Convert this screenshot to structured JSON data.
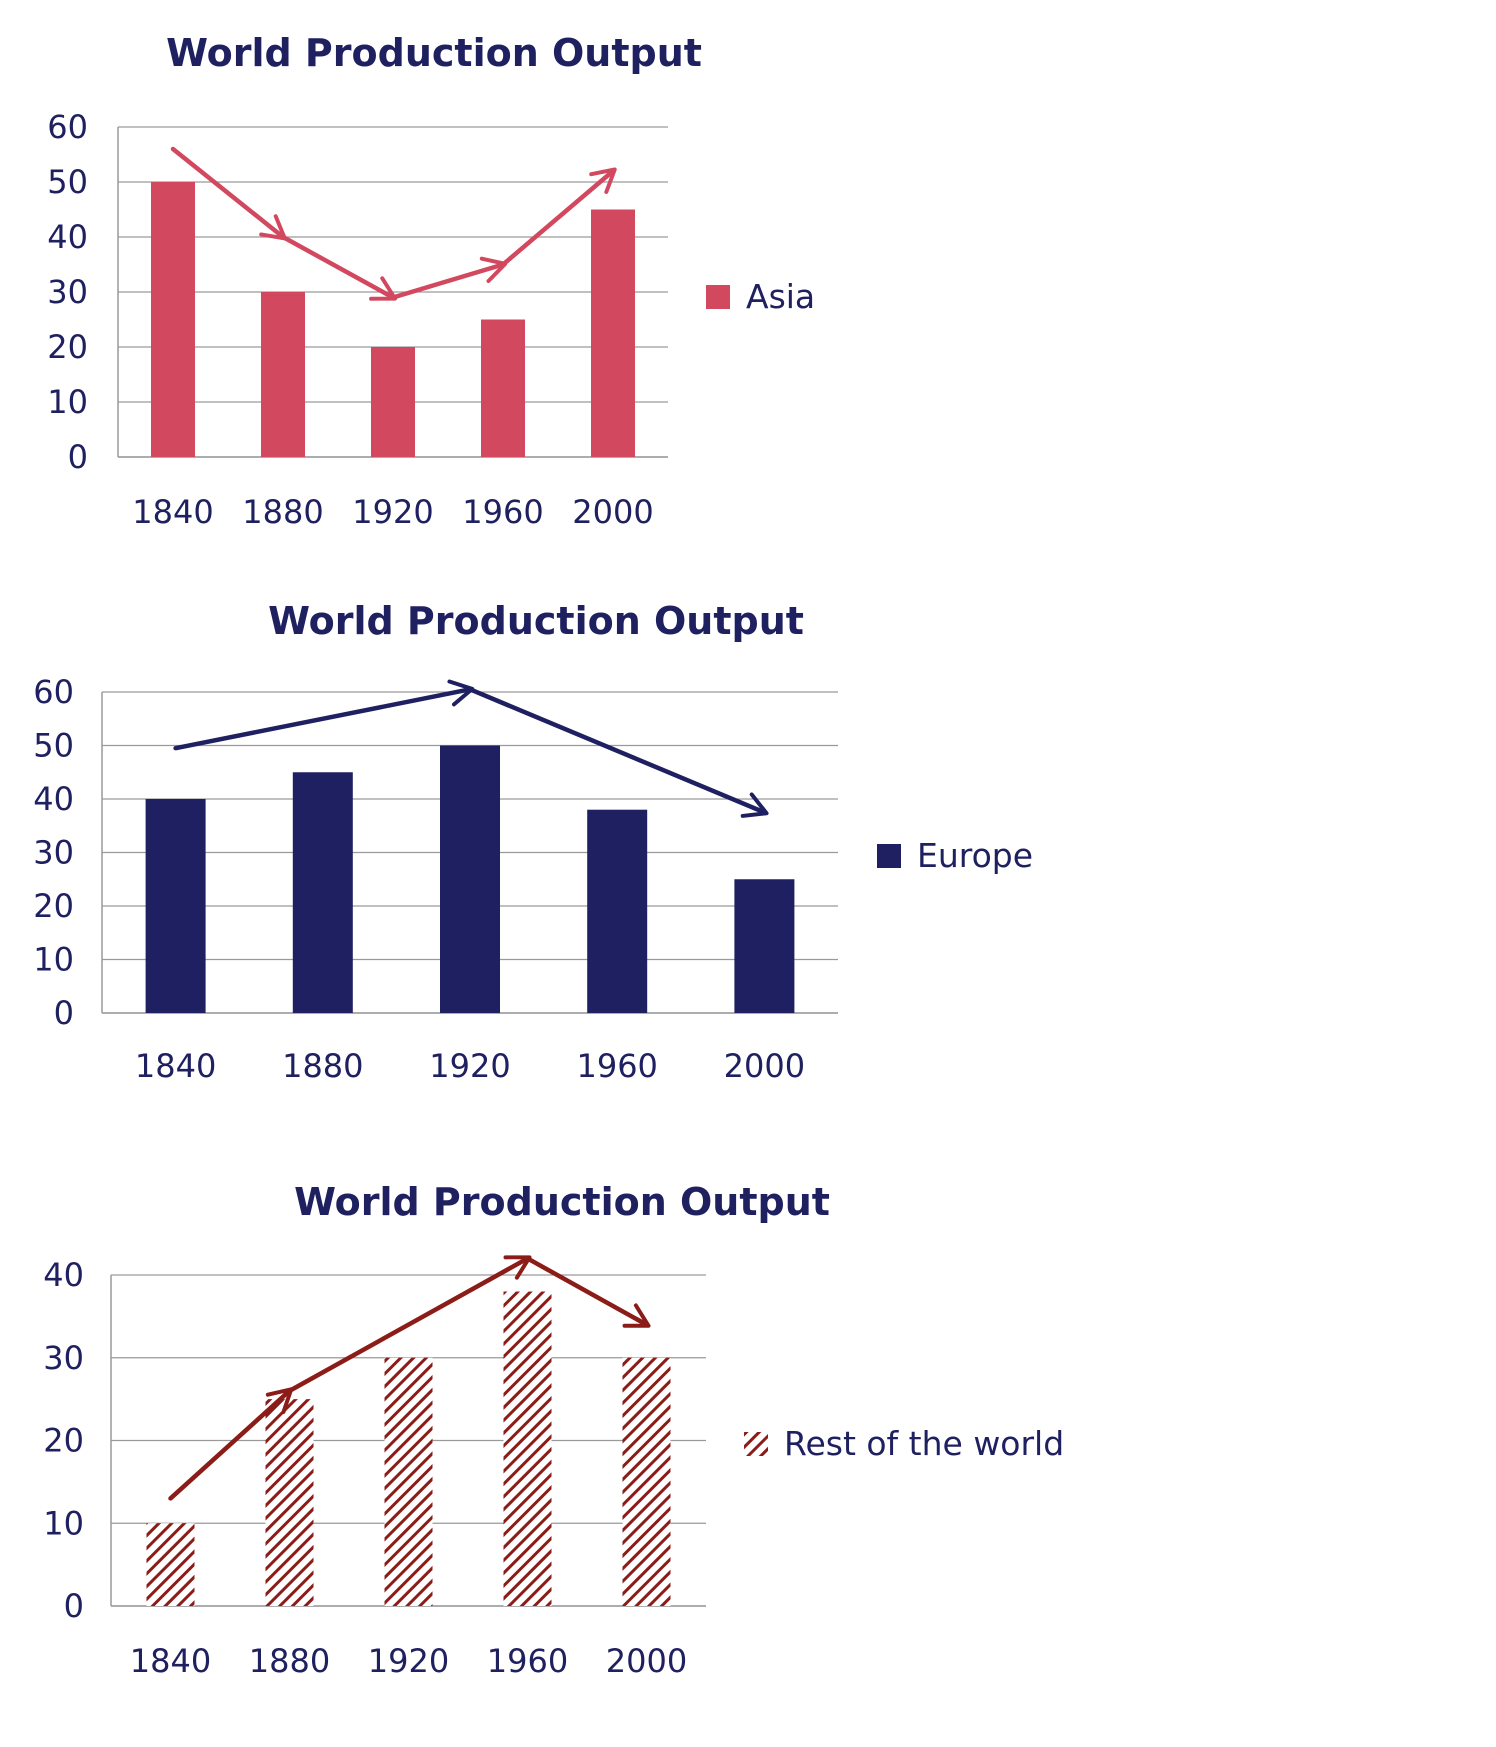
{
  "colors": {
    "title": "#1f2060",
    "axis_text": "#1f2060",
    "grid": "#9a9a9a",
    "asia": "#d2485f",
    "europe": "#1f2062",
    "rest": "#8b1c18"
  },
  "chart_data": [
    {
      "type": "bar",
      "title": "World Production Output",
      "categories": [
        "1840",
        "1880",
        "1920",
        "1960",
        "2000"
      ],
      "series": [
        {
          "name": "Asia",
          "values": [
            50,
            30,
            20,
            25,
            45
          ],
          "color": "#d2485f",
          "pattern": "solid"
        }
      ],
      "ylim": [
        0,
        60
      ],
      "yticks": [
        0,
        10,
        20,
        30,
        40,
        50,
        60
      ],
      "xlabel": "",
      "ylabel": "",
      "grid": true,
      "legend": "right",
      "trend_arrow": {
        "color": "#d2485f",
        "points": [
          [
            1840,
            56
          ],
          [
            1880,
            40
          ],
          [
            1920,
            29
          ],
          [
            1960,
            35
          ],
          [
            2000,
            52
          ]
        ],
        "arrowheads_at": [
          1,
          2,
          3,
          4
        ]
      }
    },
    {
      "type": "bar",
      "title": "World Production Output",
      "categories": [
        "1840",
        "1880",
        "1920",
        "1960",
        "2000"
      ],
      "series": [
        {
          "name": "Europe",
          "values": [
            40,
            45,
            50,
            38,
            25
          ],
          "color": "#1f2062",
          "pattern": "solid"
        }
      ],
      "ylim": [
        0,
        60
      ],
      "yticks": [
        0,
        10,
        20,
        30,
        40,
        50,
        60
      ],
      "xlabel": "",
      "ylabel": "",
      "grid": true,
      "legend": "right",
      "trend_arrow": {
        "color": "#1f2062",
        "points": [
          [
            1840,
            49.5
          ],
          [
            1920,
            60.5
          ],
          [
            2000,
            37.5
          ]
        ],
        "arrowheads_at": [
          1,
          2
        ]
      }
    },
    {
      "type": "bar",
      "title": "World Production Output",
      "categories": [
        "1840",
        "1880",
        "1920",
        "1960",
        "2000"
      ],
      "series": [
        {
          "name": "Rest of the world",
          "values": [
            10,
            25,
            30,
            38,
            30
          ],
          "color": "#8b1c18",
          "pattern": "hatch"
        }
      ],
      "ylim": [
        0,
        40
      ],
      "yticks": [
        0,
        10,
        20,
        30,
        40
      ],
      "xlabel": "",
      "ylabel": "",
      "grid": true,
      "legend": "right",
      "trend_arrow": {
        "color": "#8b1c18",
        "points": [
          [
            1840,
            13
          ],
          [
            1880,
            26
          ],
          [
            1960,
            42
          ],
          [
            2000,
            34
          ]
        ],
        "arrowheads_at": [
          1,
          2,
          3
        ]
      }
    }
  ]
}
